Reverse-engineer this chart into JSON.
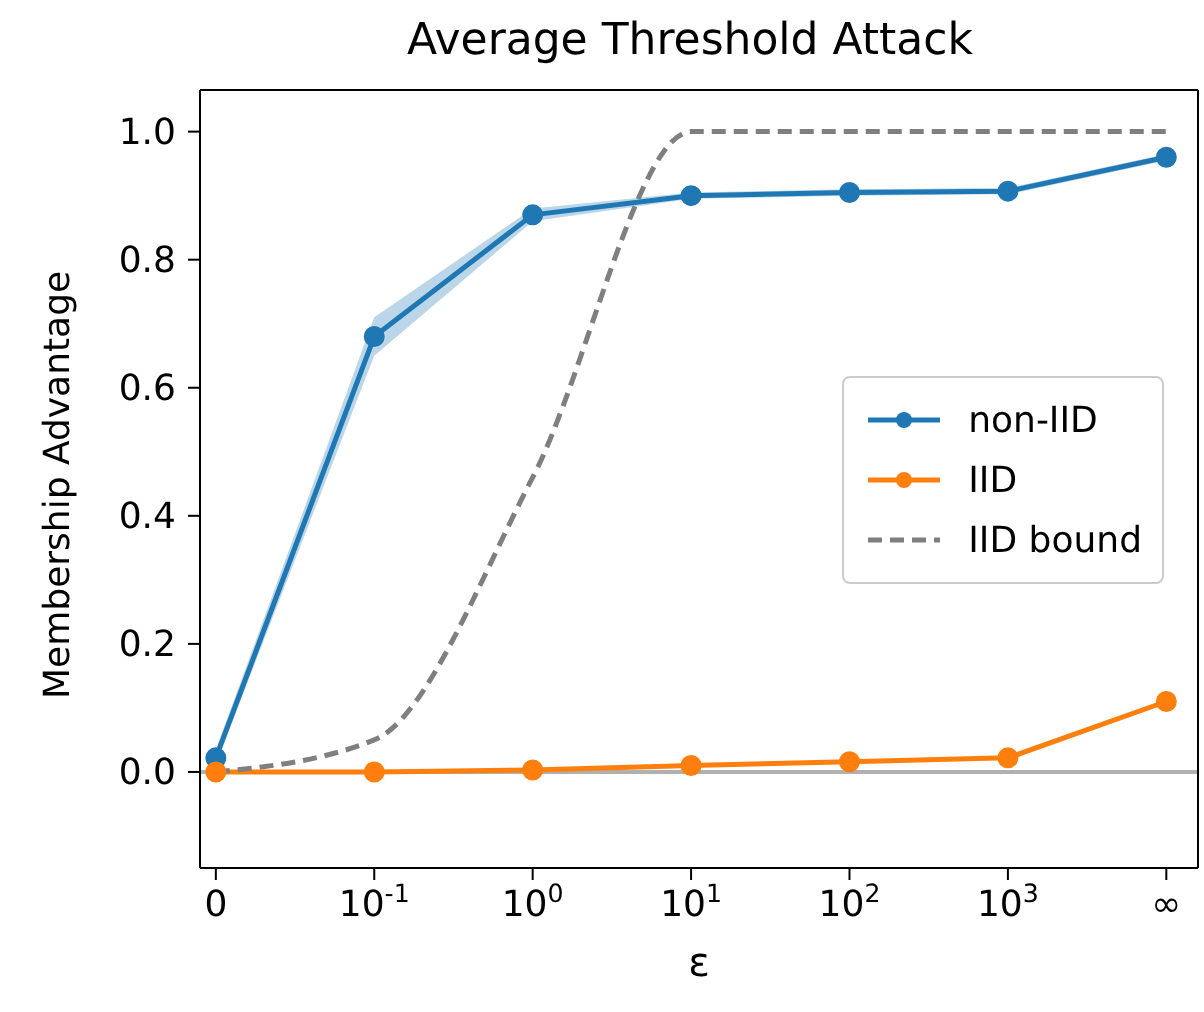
{
  "chart_data": {
    "type": "line",
    "title": "Average Threshold Attack",
    "xlabel": "ε",
    "ylabel": "Membership Advantage",
    "categories": [
      "0",
      "10$^{-1}$",
      "10$^{0}$",
      "10$^{1}$",
      "10$^{2}$",
      "10$^{3}$",
      "∞"
    ],
    "series": [
      {
        "name": "non-IID",
        "color": "#1f77b4",
        "marker": "circle",
        "line_style": "solid",
        "values": [
          0.022,
          0.68,
          0.87,
          0.9,
          0.905,
          0.907,
          0.96
        ],
        "lower": [
          0.012,
          0.65,
          0.86,
          0.895,
          0.9,
          0.902,
          0.955
        ],
        "upper": [
          0.035,
          0.71,
          0.88,
          0.905,
          0.91,
          0.912,
          0.965
        ]
      },
      {
        "name": "IID",
        "color": "#ff7f0e",
        "marker": "circle",
        "line_style": "solid",
        "values": [
          0.0,
          0.0,
          0.003,
          0.01,
          0.016,
          0.022,
          0.11
        ]
      },
      {
        "name": "IID bound",
        "color": "#7f7f7f",
        "marker": "none",
        "line_style": "dashed",
        "values": [
          0.0,
          0.05,
          0.46,
          1.0,
          1.0,
          1.0,
          1.0
        ]
      }
    ],
    "ylim": [
      -0.15,
      1.065
    ],
    "yticks": [
      {
        "value": 0,
        "label": "0.0"
      },
      {
        "value": 0.2,
        "label": "0.2"
      },
      {
        "value": 0.4,
        "label": "0.4"
      },
      {
        "value": 0.6,
        "label": "0.6"
      },
      {
        "value": 0.8,
        "label": "0.8"
      },
      {
        "value": 1,
        "label": "1.0"
      }
    ],
    "ref_lines": [
      {
        "axis": "y",
        "value": 0,
        "label": null,
        "color": "#b0b0b0"
      }
    ],
    "grid": false,
    "legend": "center right"
  }
}
